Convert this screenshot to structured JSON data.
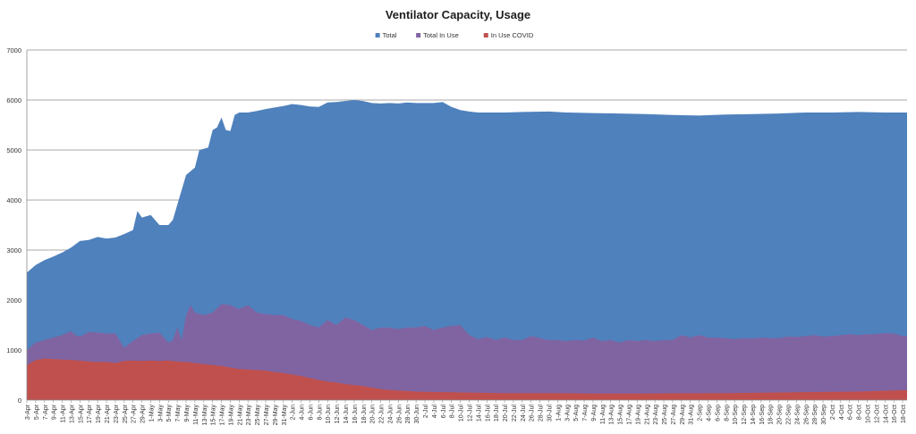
{
  "chart_data": {
    "type": "area",
    "title": "Ventilator Capacity, Usage",
    "xlabel": "",
    "ylabel": "",
    "ylim": [
      0,
      7000
    ],
    "yticks": [
      0,
      1000,
      2000,
      3000,
      4000,
      5000,
      6000,
      7000
    ],
    "grid": true,
    "legend_position": "top-center",
    "x_tick_labels": [
      "3-Apr",
      "5-Apr",
      "7-Apr",
      "9-Apr",
      "11-Apr",
      "13-Apr",
      "15-Apr",
      "17-Apr",
      "19-Apr",
      "21-Apr",
      "23-Apr",
      "25-Apr",
      "27-Apr",
      "29-Apr",
      "1-May",
      "3-May",
      "5-May",
      "7-May",
      "9-May",
      "11-May",
      "13-May",
      "15-May",
      "17-May",
      "19-May",
      "21-May",
      "23-May",
      "25-May",
      "27-May",
      "29-May",
      "31-May",
      "2-Jun",
      "4-Jun",
      "6-Jun",
      "8-Jun",
      "10-Jun",
      "12-Jun",
      "14-Jun",
      "16-Jun",
      "18-Jun",
      "20-Jun",
      "22-Jun",
      "24-Jun",
      "26-Jun",
      "28-Jun",
      "30-Jun",
      "2-Jul",
      "4-Jul",
      "6-Jul",
      "8-Jul",
      "10-Jul",
      "12-Jul",
      "14-Jul",
      "16-Jul",
      "18-Jul",
      "20-Jul",
      "22-Jul",
      "24-Jul",
      "26-Jul",
      "28-Jul",
      "30-Jul",
      "1-Aug",
      "3-Aug",
      "5-Aug",
      "7-Aug",
      "9-Aug",
      "11-Aug",
      "13-Aug",
      "15-Aug",
      "17-Aug",
      "19-Aug",
      "21-Aug",
      "23-Aug",
      "25-Aug",
      "27-Aug",
      "29-Aug",
      "31-Aug",
      "2-Sep",
      "4-Sep",
      "6-Sep",
      "8-Sep",
      "10-Sep",
      "12-Sep",
      "14-Sep",
      "16-Sep",
      "18-Sep",
      "20-Sep",
      "22-Sep",
      "24-Sep",
      "26-Sep",
      "28-Sep",
      "30-Sep",
      "2-Oct",
      "4-Oct",
      "6-Oct",
      "8-Oct",
      "10-Oct",
      "12-Oct",
      "14-Oct",
      "16-Oct",
      "18-Oct"
    ],
    "x_start": "3-Apr",
    "x_end": "19-Oct",
    "series": [
      {
        "name": "Total",
        "color": "#4f81bd",
        "points": [
          [
            "3-Apr",
            2550
          ],
          [
            "5-Apr",
            2700
          ],
          [
            "7-Apr",
            2800
          ],
          [
            "9-Apr",
            2870
          ],
          [
            "11-Apr",
            2950
          ],
          [
            "13-Apr",
            3050
          ],
          [
            "15-Apr",
            3180
          ],
          [
            "17-Apr",
            3200
          ],
          [
            "19-Apr",
            3260
          ],
          [
            "21-Apr",
            3230
          ],
          [
            "23-Apr",
            3250
          ],
          [
            "25-Apr",
            3320
          ],
          [
            "27-Apr",
            3400
          ],
          [
            "28-Apr",
            3780
          ],
          [
            "29-Apr",
            3650
          ],
          [
            "1-May",
            3700
          ],
          [
            "3-May",
            3500
          ],
          [
            "5-May",
            3500
          ],
          [
            "6-May",
            3600
          ],
          [
            "7-May",
            3900
          ],
          [
            "9-May",
            4500
          ],
          [
            "11-May",
            4650
          ],
          [
            "12-May",
            5000
          ],
          [
            "14-May",
            5050
          ],
          [
            "15-May",
            5400
          ],
          [
            "16-May",
            5450
          ],
          [
            "17-May",
            5650
          ],
          [
            "18-May",
            5400
          ],
          [
            "19-May",
            5380
          ],
          [
            "20-May",
            5700
          ],
          [
            "21-May",
            5750
          ],
          [
            "23-May",
            5750
          ],
          [
            "25-May",
            5780
          ],
          [
            "27-May",
            5820
          ],
          [
            "29-May",
            5850
          ],
          [
            "31-May",
            5880
          ],
          [
            "2-Jun",
            5920
          ],
          [
            "4-Jun",
            5900
          ],
          [
            "6-Jun",
            5870
          ],
          [
            "8-Jun",
            5860
          ],
          [
            "10-Jun",
            5950
          ],
          [
            "12-Jun",
            5960
          ],
          [
            "14-Jun",
            5980
          ],
          [
            "16-Jun",
            6000
          ],
          [
            "18-Jun",
            5980
          ],
          [
            "20-Jun",
            5940
          ],
          [
            "22-Jun",
            5930
          ],
          [
            "24-Jun",
            5940
          ],
          [
            "26-Jun",
            5930
          ],
          [
            "28-Jun",
            5950
          ],
          [
            "30-Jun",
            5940
          ],
          [
            "2-Jul",
            5940
          ],
          [
            "4-Jul",
            5940
          ],
          [
            "6-Jul",
            5960
          ],
          [
            "8-Jul",
            5860
          ],
          [
            "10-Jul",
            5800
          ],
          [
            "12-Jul",
            5770
          ],
          [
            "14-Jul",
            5750
          ],
          [
            "20-Jul",
            5750
          ],
          [
            "24-Jul",
            5760
          ],
          [
            "30-Jul",
            5770
          ],
          [
            "3-Aug",
            5750
          ],
          [
            "9-Aug",
            5740
          ],
          [
            "15-Aug",
            5730
          ],
          [
            "21-Aug",
            5720
          ],
          [
            "27-Aug",
            5700
          ],
          [
            "2-Sep",
            5690
          ],
          [
            "8-Sep",
            5710
          ],
          [
            "14-Sep",
            5720
          ],
          [
            "20-Sep",
            5730
          ],
          [
            "26-Sep",
            5750
          ],
          [
            "2-Oct",
            5750
          ],
          [
            "8-Oct",
            5760
          ],
          [
            "14-Oct",
            5750
          ],
          [
            "19-Oct",
            5750
          ]
        ]
      },
      {
        "name": "Total In Use",
        "color": "#8064a2",
        "points": [
          [
            "3-Apr",
            1000
          ],
          [
            "5-Apr",
            1150
          ],
          [
            "7-Apr",
            1200
          ],
          [
            "9-Apr",
            1250
          ],
          [
            "11-Apr",
            1300
          ],
          [
            "13-Apr",
            1380
          ],
          [
            "14-Apr",
            1300
          ],
          [
            "15-Apr",
            1270
          ],
          [
            "17-Apr",
            1360
          ],
          [
            "19-Apr",
            1350
          ],
          [
            "21-Apr",
            1330
          ],
          [
            "23-Apr",
            1330
          ],
          [
            "25-Apr",
            1050
          ],
          [
            "27-Apr",
            1180
          ],
          [
            "29-Apr",
            1300
          ],
          [
            "1-May",
            1330
          ],
          [
            "3-May",
            1350
          ],
          [
            "5-May",
            1150
          ],
          [
            "6-May",
            1200
          ],
          [
            "7-May",
            1450
          ],
          [
            "8-May",
            1200
          ],
          [
            "9-May",
            1700
          ],
          [
            "10-May",
            1900
          ],
          [
            "11-May",
            1750
          ],
          [
            "13-May",
            1700
          ],
          [
            "15-May",
            1750
          ],
          [
            "17-May",
            1920
          ],
          [
            "19-May",
            1900
          ],
          [
            "21-May",
            1820
          ],
          [
            "23-May",
            1900
          ],
          [
            "25-May",
            1750
          ],
          [
            "27-May",
            1720
          ],
          [
            "29-May",
            1700
          ],
          [
            "31-May",
            1700
          ],
          [
            "2-Jun",
            1620
          ],
          [
            "4-Jun",
            1580
          ],
          [
            "6-Jun",
            1500
          ],
          [
            "8-Jun",
            1450
          ],
          [
            "10-Jun",
            1600
          ],
          [
            "12-Jun",
            1500
          ],
          [
            "14-Jun",
            1650
          ],
          [
            "16-Jun",
            1600
          ],
          [
            "18-Jun",
            1500
          ],
          [
            "20-Jun",
            1400
          ],
          [
            "22-Jun",
            1450
          ],
          [
            "24-Jun",
            1450
          ],
          [
            "26-Jun",
            1420
          ],
          [
            "28-Jun",
            1450
          ],
          [
            "30-Jun",
            1450
          ],
          [
            "2-Jul",
            1480
          ],
          [
            "4-Jul",
            1400
          ],
          [
            "6-Jul",
            1450
          ],
          [
            "8-Jul",
            1480
          ],
          [
            "10-Jul",
            1500
          ],
          [
            "12-Jul",
            1300
          ],
          [
            "14-Jul",
            1220
          ],
          [
            "16-Jul",
            1260
          ],
          [
            "18-Jul",
            1200
          ],
          [
            "20-Jul",
            1250
          ],
          [
            "22-Jul",
            1200
          ],
          [
            "24-Jul",
            1200
          ],
          [
            "26-Jul",
            1280
          ],
          [
            "28-Jul",
            1240
          ],
          [
            "30-Jul",
            1200
          ],
          [
            "1-Aug",
            1200
          ],
          [
            "3-Aug",
            1180
          ],
          [
            "5-Aug",
            1200
          ],
          [
            "7-Aug",
            1190
          ],
          [
            "9-Aug",
            1250
          ],
          [
            "11-Aug",
            1180
          ],
          [
            "13-Aug",
            1200
          ],
          [
            "15-Aug",
            1150
          ],
          [
            "17-Aug",
            1200
          ],
          [
            "19-Aug",
            1180
          ],
          [
            "21-Aug",
            1200
          ],
          [
            "23-Aug",
            1180
          ],
          [
            "25-Aug",
            1200
          ],
          [
            "27-Aug",
            1200
          ],
          [
            "29-Aug",
            1300
          ],
          [
            "31-Aug",
            1250
          ],
          [
            "2-Sep",
            1300
          ],
          [
            "4-Sep",
            1250
          ],
          [
            "6-Sep",
            1250
          ],
          [
            "8-Sep",
            1240
          ],
          [
            "10-Sep",
            1220
          ],
          [
            "12-Sep",
            1240
          ],
          [
            "14-Sep",
            1230
          ],
          [
            "16-Sep",
            1250
          ],
          [
            "18-Sep",
            1240
          ],
          [
            "20-Sep",
            1240
          ],
          [
            "22-Sep",
            1270
          ],
          [
            "24-Sep",
            1260
          ],
          [
            "26-Sep",
            1280
          ],
          [
            "28-Sep",
            1300
          ],
          [
            "30-Sep",
            1270
          ],
          [
            "2-Oct",
            1280
          ],
          [
            "4-Oct",
            1300
          ],
          [
            "6-Oct",
            1320
          ],
          [
            "8-Oct",
            1300
          ],
          [
            "10-Oct",
            1320
          ],
          [
            "12-Oct",
            1320
          ],
          [
            "14-Oct",
            1340
          ],
          [
            "16-Oct",
            1330
          ],
          [
            "18-Oct",
            1280
          ],
          [
            "19-Oct",
            1280
          ]
        ]
      },
      {
        "name": "In Use COVID",
        "color": "#c0504d",
        "points": [
          [
            "3-Apr",
            700
          ],
          [
            "5-Apr",
            800
          ],
          [
            "7-Apr",
            830
          ],
          [
            "9-Apr",
            820
          ],
          [
            "11-Apr",
            810
          ],
          [
            "13-Apr",
            800
          ],
          [
            "15-Apr",
            790
          ],
          [
            "17-Apr",
            770
          ],
          [
            "19-Apr",
            760
          ],
          [
            "21-Apr",
            760
          ],
          [
            "23-Apr",
            740
          ],
          [
            "25-Apr",
            780
          ],
          [
            "27-Apr",
            790
          ],
          [
            "29-Apr",
            780
          ],
          [
            "1-May",
            790
          ],
          [
            "3-May",
            780
          ],
          [
            "5-May",
            790
          ],
          [
            "7-May",
            770
          ],
          [
            "9-May",
            760
          ],
          [
            "11-May",
            740
          ],
          [
            "13-May",
            720
          ],
          [
            "15-May",
            700
          ],
          [
            "17-May",
            680
          ],
          [
            "19-May",
            650
          ],
          [
            "21-May",
            620
          ],
          [
            "23-May",
            610
          ],
          [
            "25-May",
            600
          ],
          [
            "27-May",
            590
          ],
          [
            "29-May",
            560
          ],
          [
            "31-May",
            540
          ],
          [
            "2-Jun",
            510
          ],
          [
            "4-Jun",
            480
          ],
          [
            "6-Jun",
            440
          ],
          [
            "8-Jun",
            400
          ],
          [
            "10-Jun",
            370
          ],
          [
            "12-Jun",
            350
          ],
          [
            "14-Jun",
            320
          ],
          [
            "16-Jun",
            300
          ],
          [
            "18-Jun",
            280
          ],
          [
            "20-Jun",
            250
          ],
          [
            "22-Jun",
            220
          ],
          [
            "24-Jun",
            200
          ],
          [
            "26-Jun",
            190
          ],
          [
            "28-Jun",
            180
          ],
          [
            "30-Jun",
            170
          ],
          [
            "2-Jul",
            165
          ],
          [
            "4-Jul",
            160
          ],
          [
            "8-Jul",
            155
          ],
          [
            "12-Jul",
            150
          ],
          [
            "20-Jul",
            140
          ],
          [
            "30-Jul",
            140
          ],
          [
            "9-Aug",
            130
          ],
          [
            "19-Aug",
            130
          ],
          [
            "29-Aug",
            135
          ],
          [
            "8-Sep",
            140
          ],
          [
            "18-Sep",
            150
          ],
          [
            "28-Sep",
            160
          ],
          [
            "8-Oct",
            170
          ],
          [
            "19-Oct",
            200
          ]
        ]
      }
    ]
  }
}
